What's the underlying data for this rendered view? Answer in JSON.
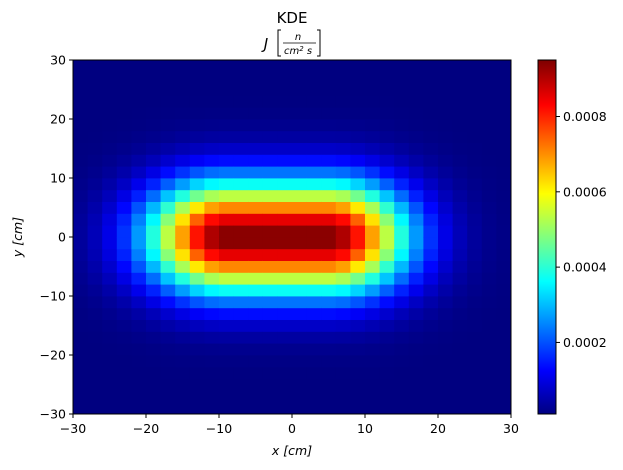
{
  "chart_data": {
    "type": "heatmap",
    "title": "KDE",
    "subtitle": {
      "symbol": "J",
      "numerator": "n",
      "denominator_base": "cm",
      "denominator_exp": "2",
      "denominator_tail": " s"
    },
    "xlabel": "x [cm]",
    "ylabel": "y [cm]",
    "xlim": [
      -30,
      30
    ],
    "ylim": [
      -30,
      30
    ],
    "x_ticks": [
      -30,
      -20,
      -10,
      0,
      10,
      20,
      30
    ],
    "y_ticks": [
      -30,
      -20,
      -10,
      0,
      10,
      20,
      30
    ],
    "x_tick_labels": [
      "−30",
      "−20",
      "−10",
      "0",
      "10",
      "20",
      "30"
    ],
    "y_tick_labels": [
      "−30",
      "−20",
      "−10",
      "0",
      "10",
      "20",
      "30"
    ],
    "grid": false,
    "bins": {
      "nx": 30,
      "ny": 30,
      "x_edges": [
        -30,
        30
      ],
      "y_edges": [
        -30,
        30
      ]
    },
    "density_model": {
      "peak": 0.00095,
      "center": [
        -2,
        0
      ],
      "plateau_half_width_x": 7,
      "sigma_x": 7.5,
      "sigma_y": 6.5,
      "background": 1e-05
    },
    "colorbar": {
      "colormap": "jet",
      "vmin": 1e-05,
      "vmax": 0.00095,
      "ticks": [
        0.0002,
        0.0004,
        0.0006,
        0.0008
      ],
      "tick_labels": [
        "0.0002",
        "0.0004",
        "0.0006",
        "0.0008"
      ]
    }
  }
}
